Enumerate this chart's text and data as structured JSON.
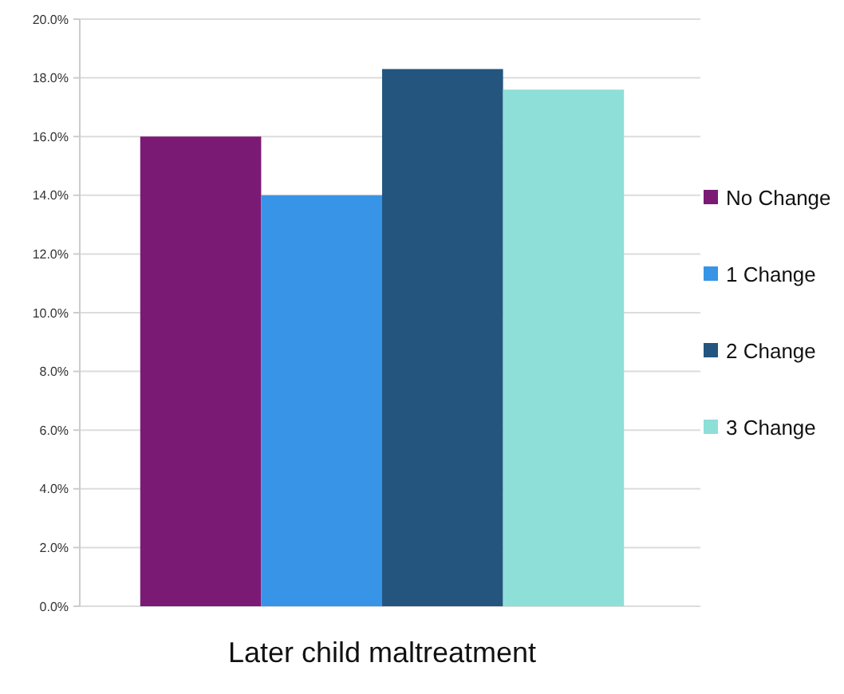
{
  "chart_data": {
    "type": "bar",
    "categories": [
      "Later child maltreatment"
    ],
    "series": [
      {
        "name": "No Change",
        "color": "#7b1a74",
        "values": [
          16.0
        ]
      },
      {
        "name": "1 Change",
        "color": "#3794e6",
        "values": [
          14.0
        ]
      },
      {
        "name": "2 Change",
        "color": "#23557f",
        "values": [
          18.3
        ]
      },
      {
        "name": "3 Change",
        "color": "#8edfd8",
        "values": [
          17.6
        ]
      }
    ],
    "ylim": [
      0,
      20
    ],
    "yticks": [
      {
        "value": 0,
        "label": "0.0%"
      },
      {
        "value": 2,
        "label": "2.0%"
      },
      {
        "value": 4,
        "label": "4.0%"
      },
      {
        "value": 6,
        "label": "6.0%"
      },
      {
        "value": 8,
        "label": "8.0%"
      },
      {
        "value": 10,
        "label": "10.0%"
      },
      {
        "value": 12,
        "label": "12.0%"
      },
      {
        "value": 14,
        "label": "14.0%"
      },
      {
        "value": 16,
        "label": "16.0%"
      },
      {
        "value": 18,
        "label": "18.0%"
      },
      {
        "value": 20,
        "label": "20.0%"
      }
    ],
    "grid": "y",
    "legend": "right"
  }
}
